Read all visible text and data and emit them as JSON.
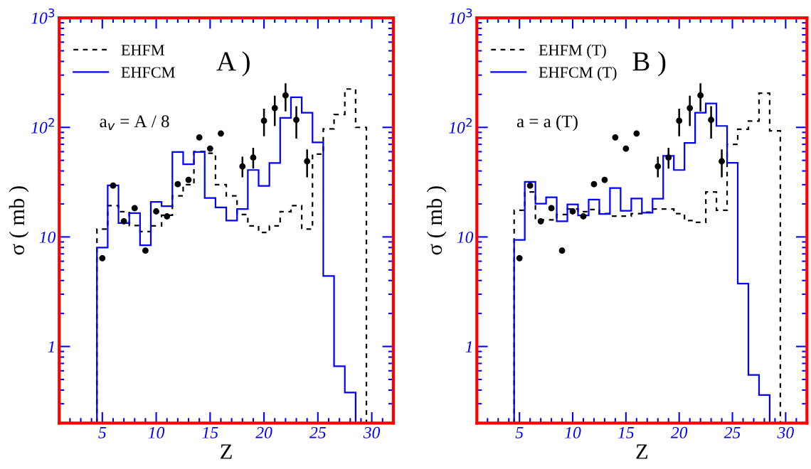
{
  "chart_data": [
    {
      "type": "histogram",
      "xlabel": "Z",
      "ylabel": "σ ( mb )",
      "log": "y",
      "xlim": [
        1,
        32
      ],
      "xticks": [
        5,
        10,
        15,
        20,
        25,
        30
      ],
      "ylim": [
        0.2,
        1000
      ],
      "yticks": [
        {
          "value": 1,
          "label": "1"
        },
        {
          "value": 10,
          "label": "10"
        },
        {
          "value": 100,
          "label": "10$^{2}$"
        },
        {
          "value": 1000,
          "label": "10$^{3}$"
        }
      ],
      "grid": false,
      "legend": "top left",
      "annotations": [
        "A )",
        "a$_{v}$ = A / 8"
      ],
      "series": [
        {
          "name": "EHFM",
          "color": "#000000",
          "line_style": "dashed",
          "bins": [
            4.5,
            5.5,
            6.5,
            7.5,
            8.5,
            9.5,
            10.5,
            11.5,
            12.5,
            13.5,
            14.5,
            15.5,
            16.5,
            17.5,
            18.5,
            19.5,
            20.5,
            21.5,
            22.5,
            23.5,
            24.5,
            25.5,
            26.5,
            27.5,
            28.5,
            29.5
          ],
          "values": [
            11.8,
            19.3,
            17,
            12.7,
            11.2,
            12.6,
            15.8,
            23.7,
            30,
            60,
            58,
            30,
            23.7,
            16,
            12.6,
            11,
            12.6,
            17,
            19.3,
            11.8,
            57,
            97,
            131,
            224,
            100
          ]
        },
        {
          "name": "EHFCM",
          "color": "#0000ff",
          "line_style": "solid",
          "bins": [
            4.5,
            5.5,
            6.5,
            7.5,
            8.5,
            9.5,
            10.5,
            11.5,
            12.5,
            13.5,
            14.5,
            15.5,
            16.5,
            17.5,
            18.5,
            19.5,
            20.5,
            21.5,
            22.5,
            23.5,
            24.5,
            25.5,
            26.5,
            27.5,
            28.5
          ],
          "values": [
            8,
            29.5,
            13.4,
            16.5,
            8.4,
            20.9,
            19.1,
            59.7,
            46,
            59.7,
            22.7,
            18.6,
            14.1,
            18,
            40.8,
            29.2,
            47.3,
            122,
            188,
            136,
            73,
            4.4,
            0.66,
            0.38
          ]
        },
        {
          "type": "scatter",
          "color": "#000000",
          "marker": "circle",
          "x": [
            5,
            6,
            7,
            8,
            9,
            10,
            11,
            12,
            13,
            14,
            15,
            16,
            18,
            19,
            20,
            21,
            22,
            23,
            24
          ],
          "values": [
            6.4,
            29.4,
            13.9,
            18.3,
            7.5,
            17.1,
            15.4,
            30.3,
            33.2,
            81,
            64,
            88,
            44,
            53,
            115,
            150,
            196,
            117,
            49
          ],
          "errors": [
            null,
            null,
            null,
            null,
            null,
            null,
            null,
            null,
            null,
            null,
            null,
            null,
            [
              35,
              54
            ],
            [
              42,
              65
            ],
            [
              83,
              148
            ],
            [
              103,
              194
            ],
            [
              140,
              252
            ],
            [
              79,
              156
            ],
            [
              35,
              63
            ]
          ]
        }
      ]
    },
    {
      "type": "histogram",
      "xlabel": "Z",
      "ylabel": "σ ( mb )",
      "log": "y",
      "xlim": [
        1,
        32
      ],
      "xticks": [
        5,
        10,
        15,
        20,
        25,
        30
      ],
      "ylim": [
        0.2,
        1000
      ],
      "yticks": [
        {
          "value": 1,
          "label": "1"
        },
        {
          "value": 10,
          "label": "10"
        },
        {
          "value": 100,
          "label": "10$^{2}$"
        },
        {
          "value": 1000,
          "label": "10$^{3}$"
        }
      ],
      "grid": false,
      "legend": "top left",
      "annotations": [
        "B )",
        "a = a (T)"
      ],
      "series": [
        {
          "name": "EHFM (T)",
          "color": "#000000",
          "line_style": "dashed",
          "bins": [
            4.5,
            5.5,
            6.5,
            7.5,
            8.5,
            9.5,
            10.5,
            11.5,
            12.5,
            13.5,
            14.5,
            15.5,
            16.5,
            17.5,
            18.5,
            19.5,
            20.5,
            21.5,
            22.5,
            23.5,
            24.5,
            25.5,
            26.5,
            27.5,
            28.5,
            29.5
          ],
          "values": [
            17.5,
            25.7,
            14.3,
            14.3,
            16,
            18,
            17,
            17.8,
            16.3,
            15.5,
            15.5,
            16.3,
            16.8,
            18,
            18,
            16.3,
            14.1,
            13.6,
            25.7,
            17.5,
            70,
            96,
            114,
            205,
            93
          ]
        },
        {
          "name": "EHFCM (T)",
          "color": "#0000ff",
          "line_style": "solid",
          "bins": [
            4.5,
            5.5,
            6.5,
            7.5,
            8.5,
            9.5,
            10.5,
            11.5,
            12.5,
            13.5,
            14.5,
            15.5,
            16.5,
            17.5,
            18.5,
            19.5,
            20.5,
            21.5,
            22.5,
            23.5,
            24.5,
            25.5,
            26.5,
            27.5,
            28.5
          ],
          "values": [
            9.4,
            31.8,
            20.1,
            23,
            13.9,
            19.8,
            15.7,
            21.9,
            16.2,
            27.9,
            17.3,
            22.4,
            16.6,
            22.3,
            55,
            40.8,
            72,
            136,
            165,
            103,
            47.5,
            3.75,
            0.55,
            0.36
          ]
        },
        {
          "type": "scatter",
          "color": "#000000",
          "marker": "circle",
          "x": [
            5,
            6,
            7,
            8,
            9,
            10,
            11,
            12,
            13,
            14,
            15,
            16,
            18,
            19,
            20,
            21,
            22,
            23,
            24
          ],
          "values": [
            6.4,
            29.4,
            13.9,
            18.3,
            7.5,
            17.1,
            15.4,
            30.3,
            33.2,
            81,
            64,
            88,
            44,
            53,
            115,
            150,
            196,
            117,
            49
          ],
          "errors": [
            null,
            null,
            null,
            null,
            null,
            null,
            null,
            null,
            null,
            null,
            null,
            null,
            [
              35,
              54
            ],
            [
              42,
              65
            ],
            [
              83,
              148
            ],
            [
              103,
              194
            ],
            [
              140,
              252
            ],
            [
              79,
              156
            ],
            [
              35,
              63
            ]
          ]
        }
      ]
    }
  ]
}
